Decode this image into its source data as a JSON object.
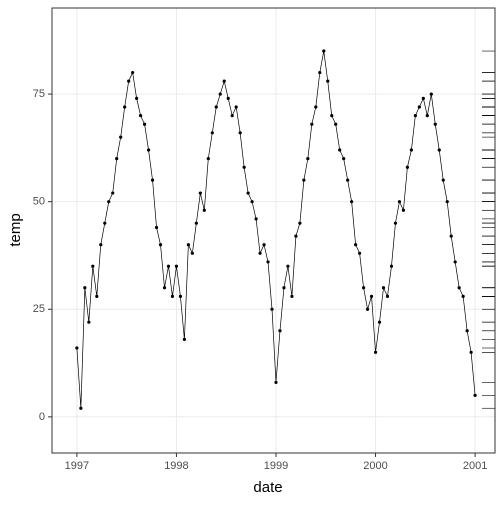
{
  "chart_data": {
    "type": "line",
    "x_label": "date",
    "y_label": "temp",
    "x": [
      1997,
      1997.04,
      1997.08,
      1997.12,
      1997.16,
      1997.2,
      1997.24,
      1997.28,
      1997.32,
      1997.36,
      1997.4,
      1997.44,
      1997.48,
      1997.52,
      1997.56,
      1997.6,
      1997.64,
      1997.68,
      1997.72,
      1997.76,
      1997.8,
      1997.84,
      1997.88,
      1997.92,
      1997.96,
      1998,
      1998.04,
      1998.08,
      1998.12,
      1998.16,
      1998.2,
      1998.24,
      1998.28,
      1998.32,
      1998.36,
      1998.4,
      1998.44,
      1998.48,
      1998.52,
      1998.56,
      1998.6,
      1998.64,
      1998.68,
      1998.72,
      1998.76,
      1998.8,
      1998.84,
      1998.88,
      1998.92,
      1998.96,
      1999,
      1999.04,
      1999.08,
      1999.12,
      1999.16,
      1999.2,
      1999.24,
      1999.28,
      1999.32,
      1999.36,
      1999.4,
      1999.44,
      1999.48,
      1999.52,
      1999.56,
      1999.6,
      1999.64,
      1999.68,
      1999.72,
      1999.76,
      1999.8,
      1999.84,
      1999.88,
      1999.92,
      1999.96,
      2000,
      2000.04,
      2000.08,
      2000.12,
      2000.16,
      2000.2,
      2000.24,
      2000.28,
      2000.32,
      2000.36,
      2000.4,
      2000.44,
      2000.48,
      2000.52,
      2000.56,
      2000.6,
      2000.64,
      2000.68,
      2000.72,
      2000.76,
      2000.8,
      2000.84,
      2000.88,
      2000.92,
      2000.96,
      2001
    ],
    "series": [
      {
        "color": "#000000",
        "values": [
          16,
          2,
          30,
          22,
          35,
          28,
          40,
          45,
          50,
          52,
          60,
          65,
          72,
          78,
          80,
          74,
          70,
          68,
          62,
          55,
          44,
          40,
          30,
          35,
          28,
          35,
          28,
          18,
          40,
          38,
          45,
          52,
          48,
          60,
          66,
          72,
          75,
          78,
          74,
          70,
          72,
          66,
          58,
          52,
          50,
          46,
          38,
          40,
          36,
          25,
          8,
          20,
          30,
          35,
          28,
          42,
          45,
          55,
          60,
          68,
          72,
          80,
          85,
          78,
          70,
          68,
          62,
          60,
          55,
          50,
          40,
          38,
          30,
          25,
          28,
          15,
          22,
          30,
          28,
          35,
          45,
          50,
          48,
          58,
          62,
          70,
          72,
          74,
          70,
          75,
          68,
          62,
          55,
          50,
          42,
          36,
          30,
          28,
          20,
          15,
          5
        ]
      }
    ],
    "xlim": [
      1996.75,
      2001.2
    ],
    "xticks": [
      1997,
      1998,
      1999,
      2000,
      2001
    ],
    "ylim": [
      -8.4,
      95
    ],
    "yticks": [
      0,
      25,
      50,
      75
    ],
    "grid": true,
    "rug": "right"
  }
}
